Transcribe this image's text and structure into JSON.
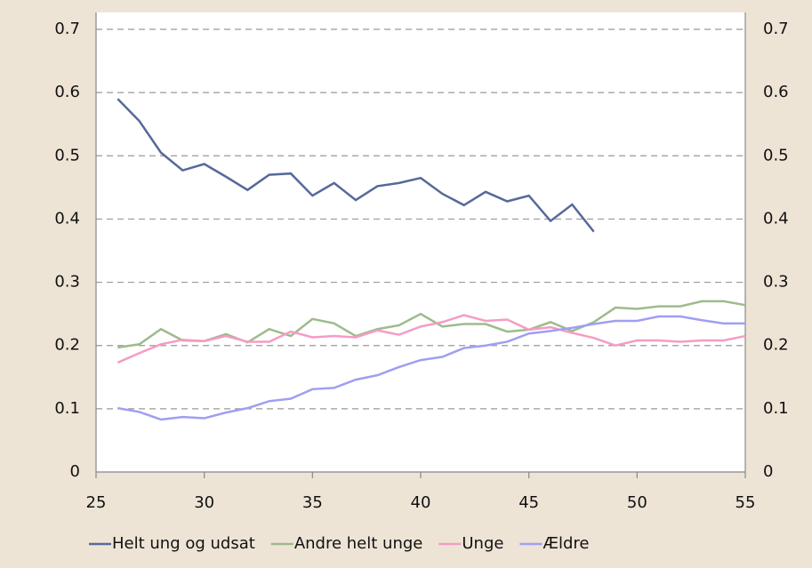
{
  "chart_data": {
    "type": "line",
    "x": [
      26,
      27,
      28,
      29,
      30,
      31,
      32,
      33,
      34,
      35,
      36,
      37,
      38,
      39,
      40,
      41,
      42,
      43,
      44,
      45,
      46,
      47,
      48,
      49,
      50,
      51,
      52,
      53,
      54,
      55
    ],
    "series": [
      {
        "name": "Helt ung og udsat",
        "color": "#56699a",
        "values": [
          0.59,
          0.555,
          0.505,
          0.477,
          0.487,
          0.467,
          0.446,
          0.47,
          0.472,
          0.437,
          0.457,
          0.43,
          0.452,
          0.457,
          0.465,
          0.44,
          0.422,
          0.443,
          0.428,
          0.437,
          0.397,
          0.423,
          0.38,
          null,
          null,
          null,
          null,
          null,
          null,
          null
        ]
      },
      {
        "name": "Andre helt unge",
        "color": "#9dbb8c",
        "values": [
          0.197,
          0.202,
          0.226,
          0.208,
          0.207,
          0.218,
          0.205,
          0.226,
          0.215,
          0.242,
          0.235,
          0.215,
          0.226,
          0.232,
          0.25,
          0.23,
          0.234,
          0.234,
          0.222,
          0.225,
          0.237,
          0.223,
          0.237,
          0.26,
          0.258,
          0.262,
          0.262,
          0.27,
          0.27,
          0.264
        ]
      },
      {
        "name": "Unge",
        "color": "#f59cc4",
        "values": [
          0.173,
          0.188,
          0.202,
          0.209,
          0.207,
          0.215,
          0.206,
          0.206,
          0.222,
          0.213,
          0.215,
          0.213,
          0.224,
          0.217,
          0.23,
          0.237,
          0.248,
          0.239,
          0.241,
          0.225,
          0.229,
          0.22,
          0.212,
          0.2,
          0.208,
          0.208,
          0.206,
          0.208,
          0.208,
          0.215
        ]
      },
      {
        "name": "Ældre",
        "color": "#9f9ff2",
        "values": [
          0.101,
          0.095,
          0.083,
          0.087,
          0.085,
          0.094,
          0.101,
          0.112,
          0.116,
          0.131,
          0.133,
          0.146,
          0.153,
          0.166,
          0.177,
          0.182,
          0.196,
          0.2,
          0.206,
          0.219,
          0.223,
          0.228,
          0.234,
          0.239,
          0.239,
          0.246,
          0.246,
          0.24,
          0.235,
          0.235
        ]
      }
    ],
    "xlim": [
      25,
      55
    ],
    "xticks": [
      25,
      30,
      35,
      40,
      45,
      50,
      55
    ],
    "ylim": [
      0,
      0.7
    ],
    "yticks": [
      0,
      0.1,
      0.2,
      0.3,
      0.4,
      0.5,
      0.6,
      0.7
    ],
    "y2lim": [
      0,
      0.7
    ],
    "y2ticks": [
      0,
      0.1,
      0.2,
      0.3,
      0.4,
      0.5,
      0.6,
      0.7
    ],
    "grid": true,
    "legend": "bottom"
  }
}
